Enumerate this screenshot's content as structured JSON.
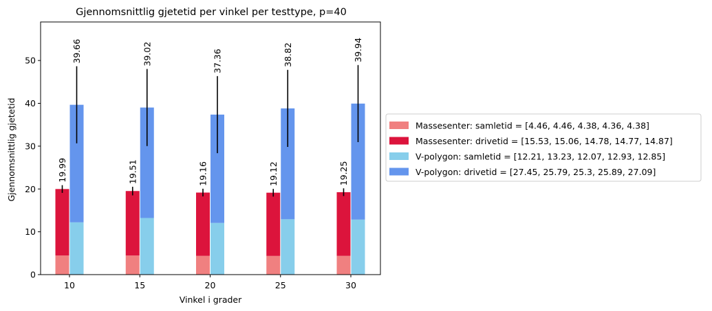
{
  "chart_data": {
    "type": "bar",
    "title": "Gjennomsnittlig gjetetid per vinkel per testtype, p=40",
    "xlabel": "Vinkel i grader",
    "ylabel": "Gjennomsnittlig gjetetid",
    "categories": [
      "10",
      "15",
      "20",
      "25",
      "30"
    ],
    "ylim": [
      0,
      59
    ],
    "yticks": [
      0,
      10,
      20,
      30,
      40,
      50
    ],
    "stacked": true,
    "groups": [
      {
        "stack_totals": [
          19.99,
          19.51,
          19.16,
          19.12,
          19.25
        ],
        "total_labels": [
          "19.99",
          "19.51",
          "19.16",
          "19.12",
          "19.25"
        ],
        "error": [
          0.9,
          1.0,
          0.9,
          0.9,
          0.9
        ],
        "series": [
          {
            "name": "Massesenter: samletid = [4.46, 4.46, 4.38, 4.36, 4.38]",
            "values": [
              4.46,
              4.46,
              4.38,
              4.36,
              4.38
            ],
            "color": "#f08080"
          },
          {
            "name": "Massesenter: drivetid = [15.53, 15.06, 14.78, 14.77, 14.87]",
            "values": [
              15.53,
              15.06,
              14.78,
              14.77,
              14.87
            ],
            "color": "#dc143c"
          }
        ]
      },
      {
        "stack_totals": [
          39.66,
          39.02,
          37.36,
          38.82,
          39.94
        ],
        "total_labels": [
          "39.66",
          "39.02",
          "37.36",
          "38.82",
          "39.94"
        ],
        "error": [
          9.0,
          9.0,
          9.0,
          9.0,
          9.0
        ],
        "series": [
          {
            "name": "V-polygon: samletid = [12.21, 13.23, 12.07, 12.93, 12.85]",
            "values": [
              12.21,
              13.23,
              12.07,
              12.93,
              12.85
            ],
            "color": "#87ceeb"
          },
          {
            "name": "V-polygon: drivetid = [27.45, 25.79, 25.3, 25.89, 27.09]",
            "values": [
              27.45,
              25.79,
              25.3,
              25.89,
              27.09
            ],
            "color": "#6495ed"
          }
        ]
      }
    ],
    "legend": {
      "placement": "right",
      "entries": [
        {
          "label": "Massesenter: samletid = [4.46, 4.46, 4.38, 4.36, 4.38]",
          "color": "#f08080"
        },
        {
          "label": "Massesenter: drivetid = [15.53, 15.06, 14.78, 14.77, 14.87]",
          "color": "#dc143c"
        },
        {
          "label": "V-polygon: samletid = [12.21, 13.23, 12.07, 12.93, 12.85]",
          "color": "#87ceeb"
        },
        {
          "label": "V-polygon: drivetid = [27.45, 25.79, 25.3, 25.89, 27.09]",
          "color": "#6495ed"
        }
      ]
    },
    "grid": false
  }
}
